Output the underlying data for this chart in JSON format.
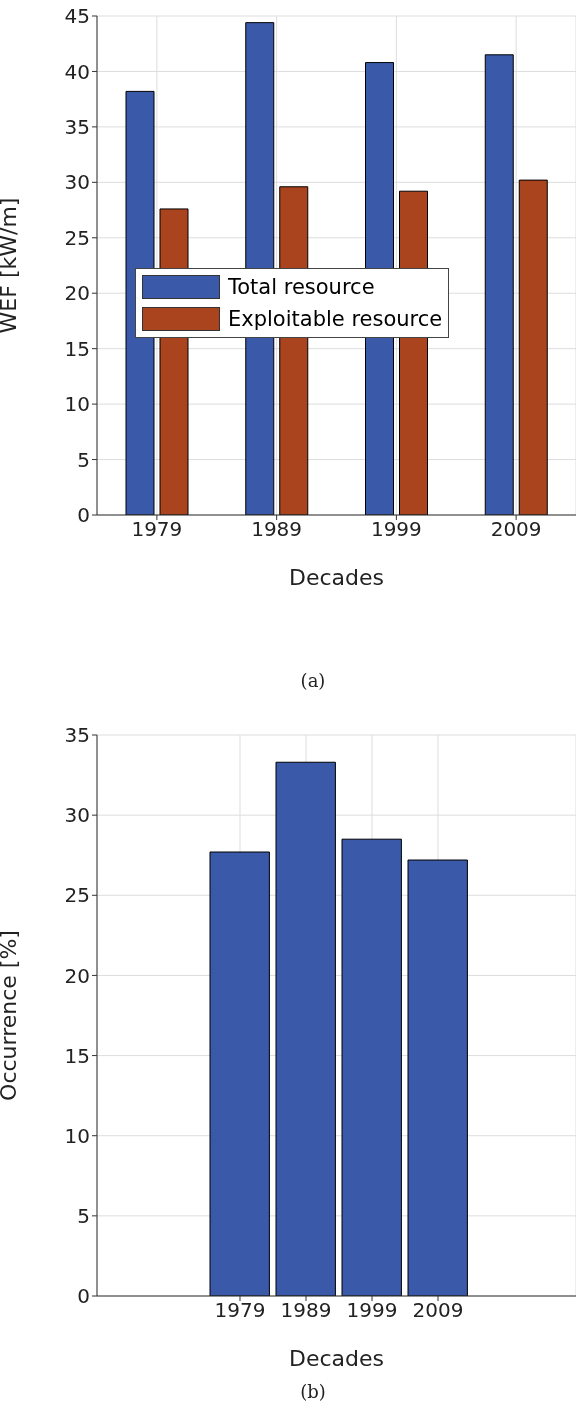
{
  "chart_data": [
    {
      "type": "bar",
      "title": "(a)",
      "xlabel": "Decades",
      "ylabel": "WEF [kW/m]",
      "categories": [
        "1979",
        "1989",
        "1999",
        "2009"
      ],
      "series": [
        {
          "name": "Total resource",
          "color": "#3a59a9",
          "values": [
            38.2,
            44.4,
            40.8,
            41.5
          ]
        },
        {
          "name": "Exploitable resource",
          "color": "#a9441f",
          "values": [
            27.6,
            29.6,
            29.2,
            30.2
          ]
        }
      ],
      "ylim": [
        0,
        45
      ],
      "yticks": [
        0,
        5,
        10,
        15,
        20,
        25,
        30,
        35,
        40,
        45
      ],
      "grid": true,
      "legend": "center"
    },
    {
      "type": "bar",
      "title": "(b)",
      "xlabel": "Decades",
      "ylabel": "Occurrence [%]",
      "categories": [
        "1979",
        "1989",
        "1999",
        "2009"
      ],
      "series": [
        {
          "color": "#3a59a9",
          "values": [
            27.7,
            33.3,
            28.5,
            27.2
          ]
        }
      ],
      "ylim": [
        0,
        35
      ],
      "yticks": [
        0,
        5,
        10,
        15,
        20,
        25,
        30,
        35
      ],
      "grid": true
    }
  ]
}
